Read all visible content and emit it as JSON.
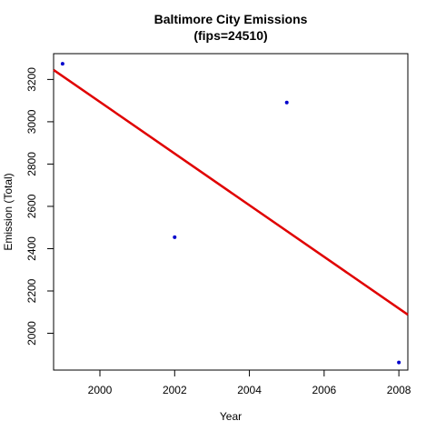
{
  "chart_data": {
    "type": "scatter",
    "title_line1": "Baltimore City Emissions",
    "title_line2": "(fips=24510)",
    "xlabel": "Year",
    "ylabel": "Emission (Total)",
    "xlim": [
      1998.76,
      2008.24
    ],
    "ylim": [
      1826,
      3322
    ],
    "xticks": [
      2000,
      2002,
      2004,
      2006,
      2008
    ],
    "yticks": [
      2000,
      2200,
      2400,
      2600,
      2800,
      3000,
      3200
    ],
    "points": [
      {
        "x": 1999,
        "y": 3274
      },
      {
        "x": 2002,
        "y": 2454
      },
      {
        "x": 2005,
        "y": 3091
      },
      {
        "x": 2008,
        "y": 1862
      }
    ],
    "trend_line": {
      "intercept_at_xmin": 3245,
      "value_at_xmax": 2088
    },
    "point_color": "#0000cc",
    "line_color": "#e00000",
    "grid": false,
    "legend": "none"
  }
}
